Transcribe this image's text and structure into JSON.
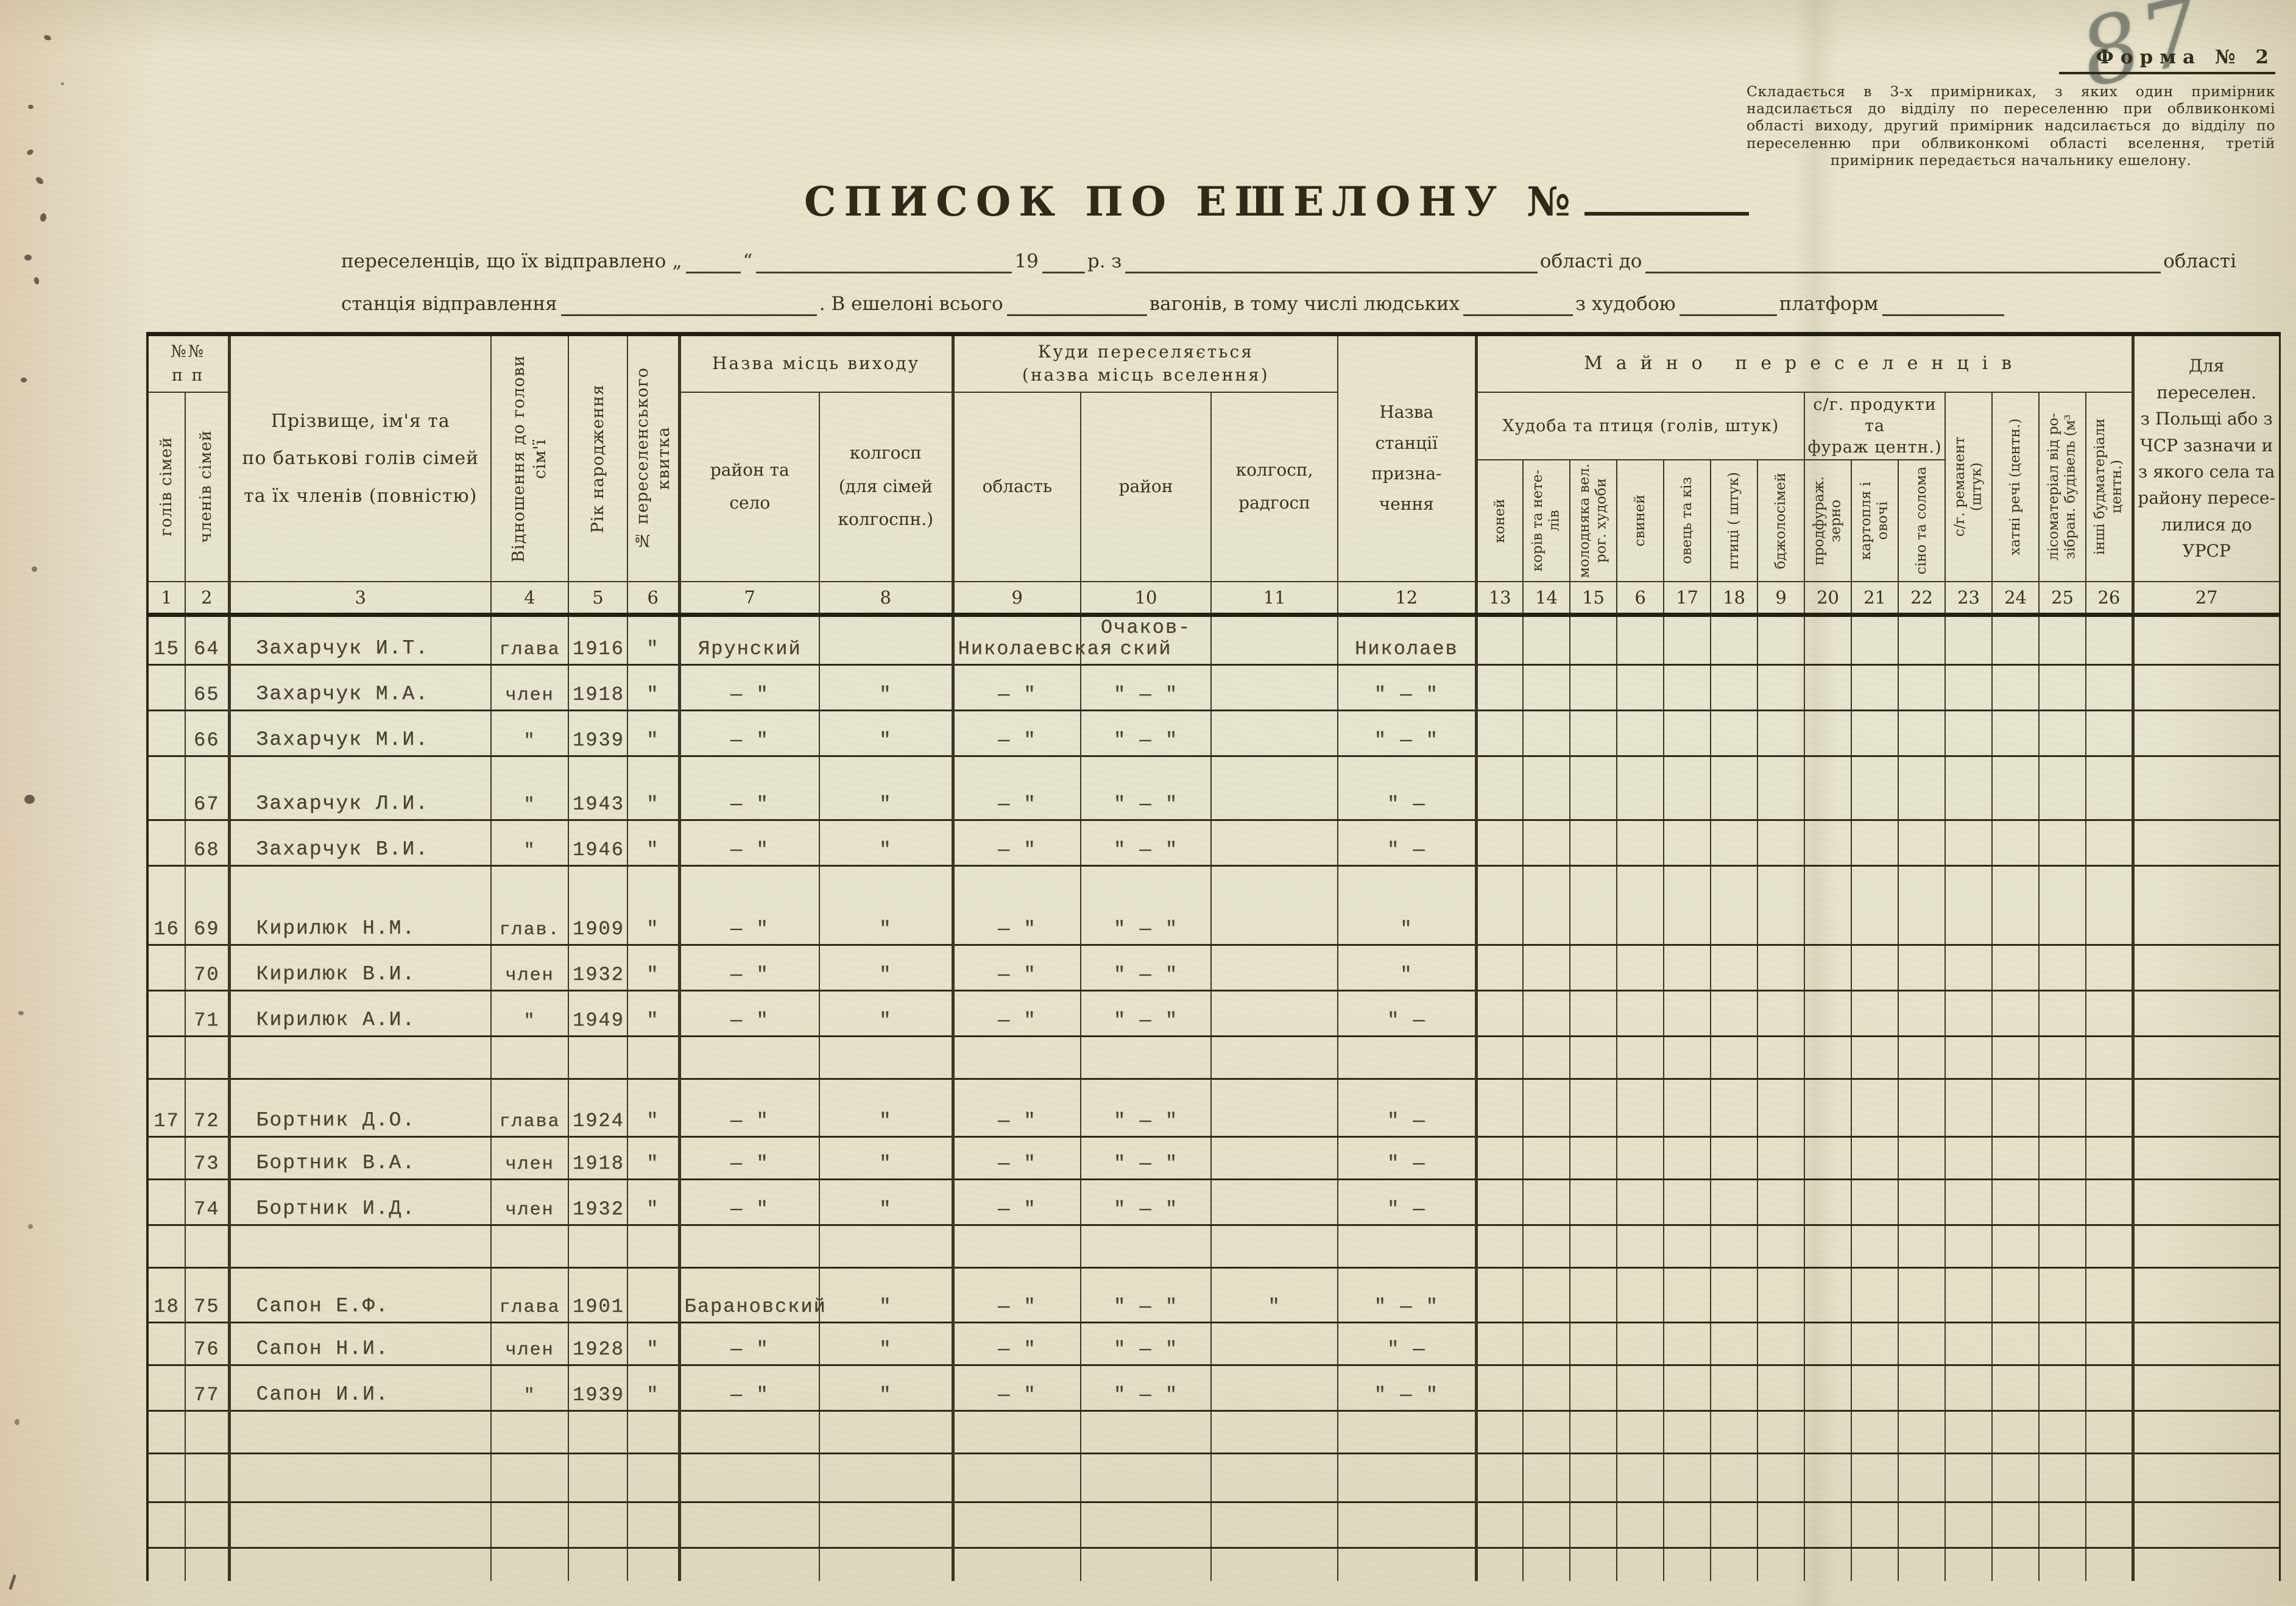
{
  "page": {
    "handwritten_number": "87",
    "form_label": "Форма № 2",
    "instruction": "Складається в 3-х примірниках, з яких один примірник надсилається до відділу по переселенню при облвиконкомі області виходу, другий примірник надсилається до відділу по переселенню при облвиконкомі області вселення, третій примірник передається начальнику ешелону.",
    "title": "СПИСОК ПО ЕШЕЛОНУ №",
    "line1": {
      "sent": "переселенців, що їх відправлено",
      "quote_open": "„",
      "quote_close": "“",
      "year_prefix": "19",
      "year_suffix": "р. з",
      "oblast_to": "області до",
      "oblast_end": "області"
    },
    "line2": {
      "station": "станція відправлення",
      "echelon_total": ". В ешелоні всього",
      "wagons": "вагонів, в тому числі людських",
      "with_cattle": "з худобою",
      "platforms": "платформ"
    }
  },
  "table": {
    "groups": {
      "npp": "№№\nп п",
      "origin": "Назва місць виходу",
      "destination": "Куди переселяється\n(назва місць вселення)",
      "property": "Майно переселенців",
      "livestock": "Худоба та птиця (голів, штук)",
      "produce": "с/г. продукти та\nфураж  центн.)"
    },
    "cols": [
      {
        "num": "1",
        "label": "голів сімей"
      },
      {
        "num": "2",
        "label": "членів сімей"
      },
      {
        "num": "3",
        "label": "Прізвище, ім'я та\nпо батькові голів сімей\nта їх членів (повністю)"
      },
      {
        "num": "4",
        "label": "Відношення до голови\nсім'ї"
      },
      {
        "num": "5",
        "label": "Рік народження"
      },
      {
        "num": "6",
        "label": "№ переселенського\nквитка"
      },
      {
        "num": "7",
        "label": "район та\nсело"
      },
      {
        "num": "8",
        "label": "колгосп\n(для сімей\nколгоспн.)"
      },
      {
        "num": "9",
        "label": "область"
      },
      {
        "num": "10",
        "label": "район"
      },
      {
        "num": "11",
        "label": "колгосп,\nрадгосп"
      },
      {
        "num": "12",
        "label": "Назва\nстанції\nпризна-\nчення"
      },
      {
        "num": "13",
        "label": "коней"
      },
      {
        "num": "14",
        "label": "корів та нете-\nлів"
      },
      {
        "num": "15",
        "label": "молодняка вел.\nрог. худоби"
      },
      {
        "num": "6",
        "label": "свиней"
      },
      {
        "num": "17",
        "label": "овець та кіз"
      },
      {
        "num": "18",
        "label": "птиці ( штук)"
      },
      {
        "num": "9",
        "label": "бджолосімей"
      },
      {
        "num": "20",
        "label": "продфураж.\nзерно"
      },
      {
        "num": "21",
        "label": "картопля і\nовочі"
      },
      {
        "num": "22",
        "label": "сіно та солома"
      },
      {
        "num": "23",
        "label": "с/г. реманент\n(штук)"
      },
      {
        "num": "24",
        "label": "хатні речі (центн.)"
      },
      {
        "num": "25",
        "label": "лісоматеріал від ро-\nзібран. будівель (м³"
      },
      {
        "num": "26",
        "label": "інші будматеріали\nцентн.)"
      },
      {
        "num": "27",
        "label": "Для переселен.\nз Польщі або з\nЧСР зазначи и\nз якого села та\nрайону пересе-\nлилися до УРСР"
      }
    ],
    "rows": [
      {
        "c1": "15",
        "c2": "64",
        "c3": "Захарчук И.Т.",
        "c4": "глава",
        "c5": "1916",
        "c6": "\"",
        "c7": "Ярунский",
        "c9": "Николаевская",
        "c10": "Очаков-\nский",
        "c12": "Николаев"
      },
      {
        "c2": "65",
        "c3": "Захарчук М.А.",
        "c4": "член",
        "c5": "1918",
        "c6": "\"",
        "c7": "—  \"",
        "c8": "\"",
        "c9": "—  \"",
        "c10": "\"  —  \"",
        "c12": "\"  —  \""
      },
      {
        "c2": "66",
        "c3": "Захарчук М.И.",
        "c4": "\"",
        "c5": "1939",
        "c6": "\"",
        "c7": "—  \"",
        "c8": "\"",
        "c9": "—  \"",
        "c10": "\"  —  \"",
        "c12": "\"  —  \""
      },
      {
        "c2": "67",
        "c3": "Захарчук Л.И.",
        "c4": "\"",
        "c5": "1943",
        "c6": "\"",
        "c7": "—  \"",
        "c8": "\"",
        "c9": "—  \"",
        "c10": "\"  —  \"",
        "c12": "\"  —"
      },
      {
        "c2": "68",
        "c3": "Захарчук В.И.",
        "c4": "\"",
        "c5": "1946",
        "c6": "\"",
        "c7": "—  \"",
        "c8": "\"",
        "c9": "—  \"",
        "c10": "\"  —  \"",
        "c12": "\"  —"
      },
      {
        "c1": "16",
        "c2": "69",
        "c3": "Кирилюк Н.М.",
        "c4": "глав.",
        "c5": "1909",
        "c6": "\"",
        "c7": "—  \"",
        "c8": "\"",
        "c9": "—  \"",
        "c10": "\"  —  \"",
        "c12": "\""
      },
      {
        "c2": "70",
        "c3": "Кирилюк В.И.",
        "c4": "член",
        "c5": "1932",
        "c6": "\"",
        "c7": "—  \"",
        "c8": "\"",
        "c9": "—  \"",
        "c10": "\"  —  \"",
        "c12": "\""
      },
      {
        "c2": "71",
        "c3": "Кирилюк А.И.",
        "c4": "\"",
        "c5": "1949",
        "c6": "\"",
        "c7": "—  \"",
        "c8": "\"",
        "c9": "—  \"",
        "c10": "\"  —  \"",
        "c12": "\"  —"
      },
      {},
      {
        "c1": "17",
        "c2": "72",
        "c3": "Бортник Д.О.",
        "c4": "глава",
        "c5": "1924",
        "c6": "\"",
        "c7": "—  \"",
        "c8": "\"",
        "c9": "—  \"",
        "c10": "\"  —  \"",
        "c12": "\"  —"
      },
      {
        "c2": "73",
        "c3": "Бортник В.А.",
        "c4": "член",
        "c5": "1918",
        "c6": "\"",
        "c7": "—  \"",
        "c8": "\"",
        "c9": "—  \"",
        "c10": "\"  —  \"",
        "c12": "\"  —"
      },
      {
        "c2": "74",
        "c3": "Бортник И.Д.",
        "c4": "член",
        "c5": "1932",
        "c6": "\"",
        "c7": "—  \"",
        "c8": "\"",
        "c9": "—  \"",
        "c10": "\"  —  \"",
        "c12": "\"  —"
      },
      {},
      {
        "c1": "18",
        "c2": "75",
        "c3": "Сапон Е.Ф.",
        "c4": "глава",
        "c5": "1901",
        "c7": "Барановский",
        "c8": "\"",
        "c9": "—  \"",
        "c10": "\"  —  \"",
        "c11": "\"",
        "c12": "\"  —  \""
      },
      {
        "c2": "76",
        "c3": "Сапон Н.И.",
        "c4": "член",
        "c5": "1928",
        "c6": "\"",
        "c7": "—  \"",
        "c8": "\"",
        "c9": "—  \"",
        "c10": "\"  —  \"",
        "c12": "\"  —"
      },
      {
        "c2": "77",
        "c3": "Сапон И.И.",
        "c4": "\"",
        "c5": "1939",
        "c6": "\"",
        "c7": "—  \"",
        "c8": "\"",
        "c9": "—  \"",
        "c10": "\"  —  \"",
        "c12": "\"  —  \""
      },
      {},
      {},
      {},
      {}
    ]
  }
}
